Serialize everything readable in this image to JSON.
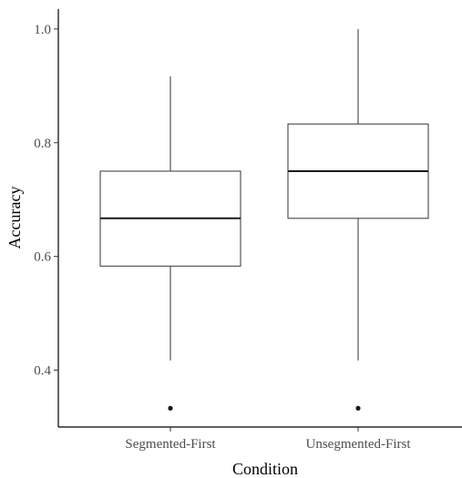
{
  "chart_data": {
    "type": "boxplot",
    "xlabel": "Condition",
    "ylabel": "Accuracy",
    "categories": [
      "Segmented-First",
      "Unsegmented-First"
    ],
    "boxes": [
      {
        "category": "Segmented-First",
        "whisker_low": 0.417,
        "q1": 0.583,
        "median": 0.667,
        "q3": 0.75,
        "whisker_high": 0.917,
        "outliers": [
          0.333
        ]
      },
      {
        "category": "Unsegmented-First",
        "whisker_low": 0.417,
        "q1": 0.667,
        "median": 0.75,
        "q3": 0.833,
        "whisker_high": 1.0,
        "outliers": [
          0.333
        ]
      }
    ],
    "ylim": [
      0.3,
      1.035
    ],
    "yticks": [
      0.4,
      0.6,
      0.8,
      1.0
    ],
    "ytick_labels": [
      "0.4",
      "0.6",
      "0.8",
      "1.0"
    ],
    "grid": false,
    "colors": {
      "box_fill": "#ffffff",
      "box_stroke": "#333333",
      "median": "#1a1a1a",
      "axis": "#000000"
    }
  }
}
